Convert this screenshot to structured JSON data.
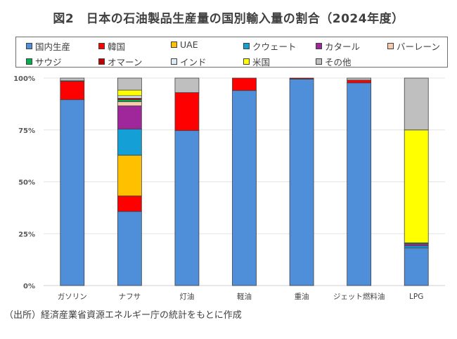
{
  "title": "図2　日本の石油製品生産量の国別輸入量の割合（2024年度）",
  "source_note": "（出所）経済産業省資源エネルギー庁の統計をもとに作成",
  "chart_data": {
    "type": "bar",
    "stacked": true,
    "percent_stacked": true,
    "title": "図2　日本の石油製品生産量の国別輸入量の割合（2024年度）",
    "xlabel": "",
    "ylabel": "",
    "ylim": [
      0,
      100
    ],
    "yticks": [
      0,
      25,
      50,
      75,
      100
    ],
    "ytick_labels": [
      "0%",
      "25%",
      "50%",
      "75%",
      "100%"
    ],
    "grid": true,
    "legend_position": "top",
    "categories": [
      "ガソリン",
      "ナフサ",
      "灯油",
      "軽油",
      "重油",
      "ジェット燃料油",
      "LPG"
    ],
    "series": [
      {
        "name": "国内生産",
        "color": "#4f8fd9",
        "values": [
          89.6,
          35.7,
          74.7,
          94.0,
          99.5,
          97.7,
          18.1
        ]
      },
      {
        "name": "韓国",
        "color": "#ff0000",
        "values": [
          8.8,
          7.5,
          18.3,
          6.0,
          0.0,
          1.3,
          0.0
        ]
      },
      {
        "name": "UAE",
        "color": "#ffc000",
        "values": [
          0.0,
          19.6,
          0.0,
          0.0,
          0.0,
          0.0,
          0.0
        ]
      },
      {
        "name": "クウェート",
        "color": "#149fd7",
        "values": [
          0.0,
          12.6,
          0.0,
          0.0,
          0.0,
          0.0,
          1.0
        ]
      },
      {
        "name": "カタール",
        "color": "#a0269b",
        "values": [
          0.0,
          11.2,
          0.0,
          0.0,
          0.0,
          0.0,
          1.0
        ]
      },
      {
        "name": "バーレーン",
        "color": "#f8cbad",
        "values": [
          0.0,
          2.0,
          0.0,
          0.0,
          0.0,
          0.0,
          0.0
        ]
      },
      {
        "name": "サウジ",
        "color": "#00b050",
        "values": [
          0.0,
          1.0,
          0.0,
          0.0,
          0.0,
          0.0,
          0.5
        ]
      },
      {
        "name": "オマーン",
        "color": "#c00000",
        "values": [
          0.3,
          0.7,
          0.0,
          0.0,
          0.5,
          0.0,
          0.0
        ]
      },
      {
        "name": "インド",
        "color": "#ddebf7",
        "values": [
          0.0,
          1.2,
          0.0,
          0.0,
          0.0,
          0.0,
          0.0
        ]
      },
      {
        "name": "米国",
        "color": "#ffff00",
        "values": [
          0.0,
          2.7,
          0.0,
          0.0,
          0.0,
          0.0,
          54.4
        ]
      },
      {
        "name": "その他",
        "color": "#bfbfbf",
        "values": [
          1.3,
          5.8,
          7.0,
          0.0,
          0.0,
          1.0,
          25.0
        ]
      }
    ]
  }
}
